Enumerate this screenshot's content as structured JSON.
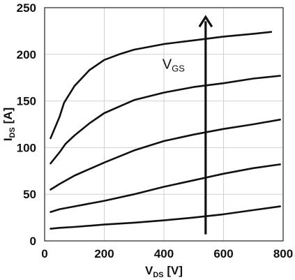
{
  "chart_data": {
    "type": "line",
    "xlim": [
      0,
      800
    ],
    "ylim": [
      0,
      250
    ],
    "x_ticks": [
      0,
      200,
      400,
      600,
      800
    ],
    "y_ticks": [
      0,
      50,
      100,
      150,
      200,
      250
    ],
    "grid": true,
    "xlabel": {
      "main": "V",
      "sub": "DS",
      "unit": " [V]"
    },
    "ylabel": {
      "main": "I",
      "sub": "DS",
      "unit": " [A]"
    },
    "annotation": {
      "text": "V",
      "sub": "GS",
      "arrow_x": 540,
      "arrow_y_from": 7,
      "arrow_y_to": 240
    },
    "line_color": "#111111",
    "grid_color": "#d0d0d0",
    "series": [
      {
        "x": [
          20,
          50,
          100,
          200,
          300,
          400,
          500,
          600,
          700,
          790
        ],
        "y": [
          13,
          14,
          15,
          17.5,
          19.5,
          22,
          25,
          28.5,
          33,
          37
        ]
      },
      {
        "x": [
          20,
          50,
          100,
          200,
          300,
          400,
          500,
          600,
          700,
          790
        ],
        "y": [
          31,
          34,
          37,
          43,
          50,
          58,
          65,
          72,
          78,
          82
        ]
      },
      {
        "x": [
          20,
          50,
          100,
          200,
          300,
          400,
          500,
          600,
          700,
          790
        ],
        "y": [
          55,
          61,
          70,
          84,
          97,
          107,
          114,
          120,
          125,
          130
        ]
      },
      {
        "x": [
          20,
          50,
          70,
          100,
          150,
          200,
          300,
          400,
          500,
          600,
          700,
          790
        ],
        "y": [
          83,
          95,
          104,
          113,
          126,
          137,
          151,
          159,
          165,
          169,
          174,
          177
        ]
      },
      {
        "x": [
          20,
          50,
          65,
          100,
          150,
          200,
          250,
          300,
          400,
          500,
          600,
          700,
          760
        ],
        "y": [
          110,
          133,
          148,
          166,
          183,
          194,
          200,
          205,
          211,
          215,
          219,
          222,
          224
        ]
      }
    ]
  }
}
